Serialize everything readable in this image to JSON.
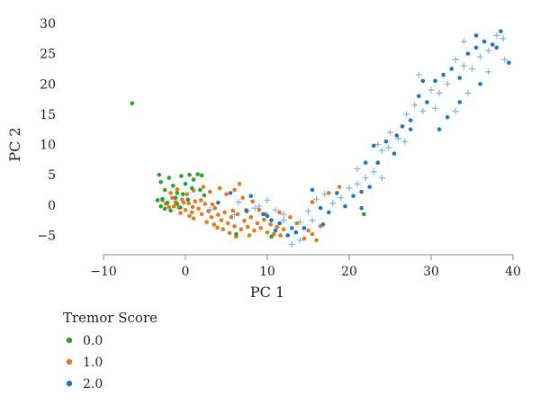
{
  "chart_data": {
    "type": "scatter",
    "xlabel": "PC 1",
    "ylabel": "PC 2",
    "xlim": [
      -10,
      40
    ],
    "ylim": [
      -8.5,
      30
    ],
    "xticks": [
      "−10",
      "0",
      "10",
      "20",
      "30",
      "40"
    ],
    "xtick_values": [
      -10,
      0,
      10,
      20,
      30,
      40
    ],
    "yticks": [
      "−5",
      "0",
      "5",
      "10",
      "15",
      "20",
      "25",
      "30"
    ],
    "ytick_values": [
      -5,
      0,
      5,
      10,
      15,
      20,
      25,
      30
    ],
    "legend": {
      "title": "Tremor Score",
      "position": "bottom-left",
      "entries": [
        "0.0",
        "1.0",
        "2.0"
      ]
    },
    "grid": false,
    "series": [
      {
        "name": "0.0",
        "color": "#2ca02c",
        "points": [
          [
            -6.5,
            16.8
          ],
          [
            -3.2,
            5.0
          ],
          [
            -3.0,
            3.8
          ],
          [
            -2.5,
            2.5
          ],
          [
            -2.0,
            4.5
          ],
          [
            -1.5,
            3.2
          ],
          [
            -1.0,
            2.0
          ],
          [
            -0.5,
            4.8
          ],
          [
            0.0,
            3.5
          ],
          [
            0.5,
            5.0
          ],
          [
            1.0,
            4.2
          ],
          [
            1.5,
            5.1
          ],
          [
            2.0,
            4.9
          ],
          [
            1.8,
            2.5
          ],
          [
            -2.8,
            1.0
          ],
          [
            -3.4,
            0.8
          ],
          [
            -2.2,
            0.4
          ],
          [
            -1.2,
            1.2
          ],
          [
            -0.3,
            1.8
          ],
          [
            0.8,
            2.8
          ],
          [
            -2.5,
            -0.6
          ],
          [
            -1.0,
            0.2
          ],
          [
            -3.0,
            -0.2
          ],
          [
            2.3,
            1.6
          ],
          [
            0.3,
            0.9
          ],
          [
            6.2,
            -4.8
          ],
          [
            10.5,
            -5.2
          ],
          [
            21.8,
            -1.5
          ],
          [
            -1.8,
            -0.9
          ],
          [
            -0.6,
            -0.4
          ]
        ]
      },
      {
        "name": "1.0",
        "color": "#e07b24",
        "points": [
          [
            -2.8,
            0.8
          ],
          [
            -2.4,
            0.2
          ],
          [
            -2.0,
            -0.3
          ],
          [
            -1.6,
            1.2
          ],
          [
            -1.2,
            0.5
          ],
          [
            -0.8,
            -0.4
          ],
          [
            -0.4,
            0.9
          ],
          [
            0.0,
            -0.8
          ],
          [
            0.4,
            0.3
          ],
          [
            0.8,
            -1.2
          ],
          [
            1.2,
            0.6
          ],
          [
            1.6,
            -0.6
          ],
          [
            2.0,
            -1.5
          ],
          [
            2.4,
            0.2
          ],
          [
            2.8,
            -1.0
          ],
          [
            3.2,
            -2.0
          ],
          [
            3.6,
            -0.5
          ],
          [
            4.0,
            -1.6
          ],
          [
            4.4,
            -2.5
          ],
          [
            4.8,
            -1.2
          ],
          [
            5.2,
            -3.0
          ],
          [
            5.6,
            -2.0
          ],
          [
            6.0,
            -3.5
          ],
          [
            6.4,
            -1.5
          ],
          [
            6.8,
            -4.0
          ],
          [
            7.2,
            -2.6
          ],
          [
            7.6,
            -3.6
          ],
          [
            8.0,
            -2.0
          ],
          [
            8.4,
            -4.2
          ],
          [
            8.8,
            -3.0
          ],
          [
            9.2,
            -3.8
          ],
          [
            9.6,
            -2.4
          ],
          [
            10.0,
            -4.5
          ],
          [
            10.4,
            -3.2
          ],
          [
            10.8,
            -4.8
          ],
          [
            11.2,
            -3.6
          ],
          [
            11.6,
            -5.0
          ],
          [
            12.0,
            -4.0
          ],
          [
            14.5,
            -5.5
          ],
          [
            15.5,
            -4.8
          ],
          [
            16.0,
            -5.8
          ],
          [
            16.5,
            -3.5
          ],
          [
            -1.8,
            2.0
          ],
          [
            -1.0,
            2.6
          ],
          [
            0.2,
            1.8
          ],
          [
            1.0,
            2.4
          ],
          [
            2.2,
            3.0
          ],
          [
            3.0,
            2.2
          ],
          [
            4.2,
            2.8
          ],
          [
            5.0,
            1.8
          ],
          [
            6.0,
            2.5
          ],
          [
            6.6,
            3.5
          ],
          [
            7.0,
            1.2
          ],
          [
            8.2,
            0.6
          ],
          [
            9.0,
            -0.8
          ],
          [
            3.5,
            -3.2
          ],
          [
            4.6,
            -4.0
          ],
          [
            5.4,
            -4.6
          ],
          [
            6.2,
            -5.2
          ],
          [
            7.8,
            -5.0
          ],
          [
            1.0,
            -2.2
          ],
          [
            0.5,
            -1.8
          ],
          [
            -0.6,
            -1.3
          ],
          [
            2.6,
            -2.8
          ],
          [
            3.9,
            -3.7
          ],
          [
            9.8,
            -1.5
          ],
          [
            12.8,
            -2.0
          ],
          [
            13.6,
            -3.0
          ],
          [
            15.0,
            -4.2
          ],
          [
            17.5,
            2.0
          ],
          [
            18.8,
            3.0
          ],
          [
            15.5,
            0.5
          ],
          [
            11.5,
            -1.2
          ],
          [
            7.4,
            -0.8
          ],
          [
            -1.4,
            -0.2
          ],
          [
            -0.2,
            0.4
          ],
          [
            0.9,
            -0.3
          ],
          [
            1.9,
            0.8
          ],
          [
            3.3,
            0.1
          ],
          [
            5.8,
            -0.9
          ]
        ]
      },
      {
        "name": "2.0",
        "color": "#1f77c4",
        "points": [
          [
            5.5,
            2.0
          ],
          [
            6.5,
            0.5
          ],
          [
            7.5,
            -1.0
          ],
          [
            8.5,
            -0.5
          ],
          [
            9.5,
            -1.5
          ],
          [
            10.0,
            0.8
          ],
          [
            10.5,
            -2.5
          ],
          [
            11.0,
            -0.8
          ],
          [
            11.5,
            -3.0
          ],
          [
            12.0,
            -1.5
          ],
          [
            12.5,
            -5.0
          ],
          [
            13.0,
            -6.5
          ],
          [
            13.5,
            -4.5
          ],
          [
            14.0,
            -2.8
          ],
          [
            14.5,
            -3.8
          ],
          [
            15.0,
            -1.0
          ],
          [
            15.5,
            2.5
          ],
          [
            16.0,
            1.0
          ],
          [
            16.5,
            -0.5
          ],
          [
            17.0,
            1.8
          ],
          [
            17.5,
            -1.2
          ],
          [
            18.0,
            0.3
          ],
          [
            18.5,
            2.0
          ],
          [
            19.0,
            1.2
          ],
          [
            19.5,
            -0.2
          ],
          [
            20.0,
            2.8
          ],
          [
            20.5,
            1.5
          ],
          [
            21.0,
            3.5
          ],
          [
            21.5,
            2.2
          ],
          [
            22.0,
            4.5
          ],
          [
            22.5,
            3.0
          ],
          [
            23.0,
            5.5
          ],
          [
            23.5,
            7.0
          ],
          [
            24.0,
            9.0
          ],
          [
            24.5,
            10.5
          ],
          [
            25.0,
            12.0
          ],
          [
            25.5,
            8.5
          ],
          [
            26.0,
            11.0
          ],
          [
            26.5,
            13.0
          ],
          [
            27.0,
            15.0
          ],
          [
            27.5,
            14.0
          ],
          [
            28.0,
            16.5
          ],
          [
            28.5,
            18.0
          ],
          [
            29.0,
            15.5
          ],
          [
            29.5,
            17.0
          ],
          [
            30.0,
            19.0
          ],
          [
            30.5,
            20.5
          ],
          [
            31.0,
            18.5
          ],
          [
            31.5,
            21.5
          ],
          [
            32.0,
            20.0
          ],
          [
            32.5,
            22.5
          ],
          [
            33.0,
            24.0
          ],
          [
            33.5,
            21.0
          ],
          [
            34.0,
            23.0
          ],
          [
            34.5,
            25.0
          ],
          [
            35.0,
            22.5
          ],
          [
            35.5,
            26.0
          ],
          [
            36.0,
            24.5
          ],
          [
            36.5,
            27.0
          ],
          [
            37.0,
            25.5
          ],
          [
            37.5,
            26.5
          ],
          [
            38.0,
            28.0
          ],
          [
            38.5,
            28.7
          ],
          [
            39.0,
            24.0
          ],
          [
            39.5,
            23.5
          ],
          [
            38.8,
            27.5
          ],
          [
            32.0,
            14.5
          ],
          [
            33.0,
            15.5
          ],
          [
            31.0,
            12.5
          ],
          [
            24.0,
            4.5
          ],
          [
            22.0,
            7.0
          ],
          [
            21.0,
            6.0
          ],
          [
            21.5,
            -0.5
          ],
          [
            23.5,
            10.0
          ],
          [
            25.8,
            11.5
          ],
          [
            26.8,
            10.5
          ],
          [
            27.5,
            12.5
          ],
          [
            24.8,
            9.5
          ],
          [
            23.0,
            9.8
          ],
          [
            30.5,
            16.0
          ],
          [
            29.0,
            20.5
          ],
          [
            28.5,
            21.5
          ],
          [
            33.5,
            17.0
          ],
          [
            34.5,
            18.5
          ],
          [
            36.0,
            20.0
          ],
          [
            37.0,
            22.0
          ],
          [
            38.0,
            26.0
          ],
          [
            34.0,
            27.0
          ],
          [
            35.5,
            28.0
          ],
          [
            12.0,
            -2.5
          ],
          [
            13.0,
            -3.8
          ],
          [
            14.0,
            -5.8
          ],
          [
            10.0,
            -1.8
          ],
          [
            9.0,
            -0.2
          ],
          [
            8.0,
            1.5
          ],
          [
            6.0,
            -1.6
          ],
          [
            4.0,
            0.4
          ],
          [
            3.0,
            -0.8
          ],
          [
            11.0,
            -4.2
          ],
          [
            15.5,
            -2.5
          ],
          [
            16.8,
            -3.2
          ]
        ]
      }
    ]
  }
}
